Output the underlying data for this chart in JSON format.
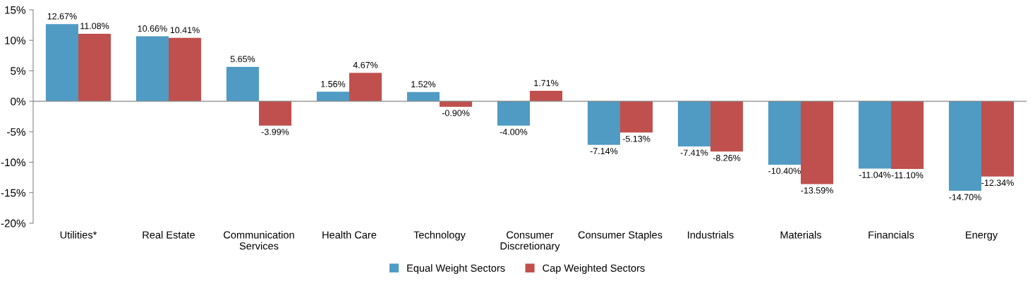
{
  "chart_data": {
    "type": "bar",
    "categories": [
      "Utilities*",
      "Real Estate",
      "Communication Services",
      "Health Care",
      "Technology",
      "Consumer Discretionary",
      "Consumer Staples",
      "Industrials",
      "Materials",
      "Financials",
      "Energy"
    ],
    "series": [
      {
        "name": "Equal Weight Sectors",
        "color": "#4f9bc4",
        "values": [
          12.67,
          10.66,
          5.65,
          1.56,
          1.52,
          -4.0,
          -7.14,
          -7.41,
          -10.4,
          -11.04,
          -14.7
        ],
        "value_labels": [
          "12.67%",
          "10.66%",
          "5.65%",
          "1.56%",
          "1.52%",
          "-4.00%",
          "-7.14%",
          "-7.41%",
          "-10.40%",
          "-11.04%",
          "-14.70%"
        ]
      },
      {
        "name": "Cap Weighted Sectors",
        "color": "#c0504d",
        "values": [
          11.08,
          10.41,
          -3.99,
          4.67,
          -0.9,
          1.71,
          -5.13,
          -8.26,
          -13.59,
          -11.1,
          -12.34
        ],
        "value_labels": [
          "11.08%",
          "10.41%",
          "-3.99%",
          "4.67%",
          "-0.90%",
          "1.71%",
          "-5.13%",
          "-8.26%",
          "-13.59%",
          "-11.10%",
          "-12.34%"
        ]
      }
    ],
    "ylim": [
      -20,
      15
    ],
    "yticks": [
      {
        "value": -20,
        "label": "-20%"
      },
      {
        "value": -15,
        "label": "-15%"
      },
      {
        "value": -10,
        "label": "-10%"
      },
      {
        "value": -5,
        "label": "-5%"
      },
      {
        "value": 0,
        "label": "0%"
      },
      {
        "value": 5,
        "label": "5%"
      },
      {
        "value": 10,
        "label": "10%"
      },
      {
        "value": 15,
        "label": "15%"
      }
    ],
    "ref_lines": [
      {
        "axis": "y",
        "value": 0,
        "color": "#868686"
      }
    ],
    "grid": false,
    "legend": "bottom"
  }
}
